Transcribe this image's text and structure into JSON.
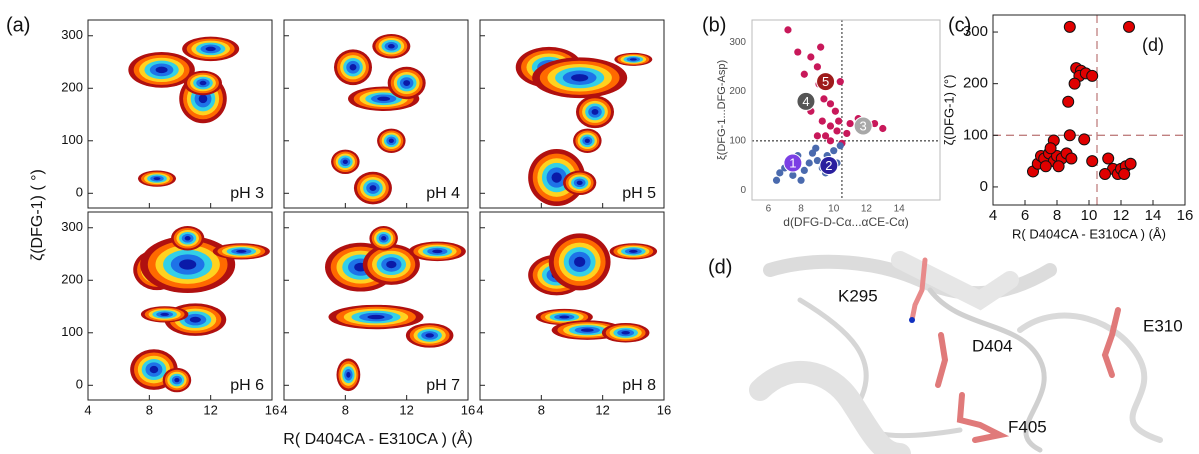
{
  "panel_labels": [
    "(a)",
    "(b)",
    "(c)",
    "(d)"
  ],
  "chart_data": [
    {
      "type": "density",
      "xlabel": "R( D404CA - E310CA ) (Å)",
      "ylabel": "ζ(DFG-1) ( °)",
      "xlim": [
        4,
        16
      ],
      "xticks": [
        4,
        8,
        12,
        16
      ],
      "ylim": [
        -28,
        330
      ],
      "yticks": [
        0,
        100,
        200,
        300
      ],
      "panels": [
        {
          "label": "pH 3",
          "clusters": [
            {
              "x": 8.8,
              "y": 235,
              "sx": 1.4,
              "sy": 22
            },
            {
              "x": 11.5,
              "y": 180,
              "sx": 1.0,
              "sy": 30
            },
            {
              "x": 12,
              "y": 275,
              "sx": 1.2,
              "sy": 15
            },
            {
              "x": 8.5,
              "y": 28,
              "sx": 0.8,
              "sy": 10
            },
            {
              "x": 11.5,
              "y": 210,
              "sx": 0.8,
              "sy": 15
            }
          ]
        },
        {
          "label": "pH 4",
          "clusters": [
            {
              "x": 8.5,
              "y": 240,
              "sx": 0.8,
              "sy": 22
            },
            {
              "x": 10.5,
              "y": 180,
              "sx": 1.5,
              "sy": 15
            },
            {
              "x": 12,
              "y": 210,
              "sx": 0.8,
              "sy": 20
            },
            {
              "x": 11,
              "y": 100,
              "sx": 0.6,
              "sy": 15
            },
            {
              "x": 9.8,
              "y": 10,
              "sx": 0.8,
              "sy": 20
            },
            {
              "x": 11,
              "y": 280,
              "sx": 0.8,
              "sy": 15
            },
            {
              "x": 8,
              "y": 60,
              "sx": 0.6,
              "sy": 15
            }
          ]
        },
        {
          "label": "pH 5",
          "clusters": [
            {
              "x": 8.5,
              "y": 240,
              "sx": 1.4,
              "sy": 25
            },
            {
              "x": 10.5,
              "y": 220,
              "sx": 2.0,
              "sy": 25
            },
            {
              "x": 11.5,
              "y": 155,
              "sx": 0.8,
              "sy": 20
            },
            {
              "x": 11,
              "y": 100,
              "sx": 0.6,
              "sy": 15
            },
            {
              "x": 9,
              "y": 30,
              "sx": 1.2,
              "sy": 35
            },
            {
              "x": 10.5,
              "y": 20,
              "sx": 0.7,
              "sy": 15
            },
            {
              "x": 14,
              "y": 255,
              "sx": 0.8,
              "sy": 8
            }
          ]
        },
        {
          "label": "pH 6",
          "clusters": [
            {
              "x": 8.5,
              "y": 220,
              "sx": 1,
              "sy": 25
            },
            {
              "x": 10.5,
              "y": 230,
              "sx": 2,
              "sy": 35
            },
            {
              "x": 14,
              "y": 255,
              "sx": 1.2,
              "sy": 10
            },
            {
              "x": 11,
              "y": 125,
              "sx": 1.3,
              "sy": 20
            },
            {
              "x": 9,
              "y": 135,
              "sx": 1,
              "sy": 10
            },
            {
              "x": 8.3,
              "y": 30,
              "sx": 1,
              "sy": 25
            },
            {
              "x": 9.8,
              "y": 10,
              "sx": 0.6,
              "sy": 15
            },
            {
              "x": 10.5,
              "y": 280,
              "sx": 0.7,
              "sy": 15
            }
          ]
        },
        {
          "label": "pH 7",
          "clusters": [
            {
              "x": 9,
              "y": 225,
              "sx": 1.5,
              "sy": 30
            },
            {
              "x": 11,
              "y": 230,
              "sx": 1.2,
              "sy": 25
            },
            {
              "x": 14,
              "y": 255,
              "sx": 1.2,
              "sy": 12
            },
            {
              "x": 10,
              "y": 130,
              "sx": 2,
              "sy": 15
            },
            {
              "x": 13.5,
              "y": 95,
              "sx": 1,
              "sy": 15
            },
            {
              "x": 10.5,
              "y": 280,
              "sx": 0.6,
              "sy": 15
            },
            {
              "x": 8.2,
              "y": 20,
              "sx": 0.5,
              "sy": 20
            }
          ]
        },
        {
          "label": "pH 8",
          "clusters": [
            {
              "x": 9,
              "y": 210,
              "sx": 1.2,
              "sy": 25
            },
            {
              "x": 10.5,
              "y": 235,
              "sx": 1.3,
              "sy": 35
            },
            {
              "x": 14,
              "y": 255,
              "sx": 1,
              "sy": 10
            },
            {
              "x": 9.5,
              "y": 130,
              "sx": 1.2,
              "sy": 10
            },
            {
              "x": 11,
              "y": 105,
              "sx": 1.5,
              "sy": 12
            },
            {
              "x": 13.5,
              "y": 100,
              "sx": 1,
              "sy": 12
            }
          ]
        }
      ]
    },
    {
      "type": "scatter",
      "xlabel": "d(DFG-D-Cα...αCE-Cα)",
      "ylabel": "ξ(DFG-1...DFG-Asp)",
      "xlim": [
        5,
        16.5
      ],
      "xticks": [
        6,
        8,
        10,
        12,
        14
      ],
      "ylim": [
        -20,
        345
      ],
      "yticks": [
        0,
        100,
        200,
        300
      ],
      "ref_x": 10.5,
      "ref_y": 100,
      "series": [
        {
          "color": "#c8185a",
          "x": [
            7.2,
            7.8,
            8.6,
            9.2,
            9.0,
            8.2,
            9.1,
            10.4,
            9.4,
            8.6,
            9.8,
            10.1,
            9.3,
            9.8,
            10.2,
            9.5,
            9.8,
            10.5,
            11.0,
            11.5,
            12.0,
            12.5,
            13.0,
            10.8,
            9.0,
            10.3
          ],
          "y": [
            325,
            280,
            270,
            290,
            250,
            235,
            215,
            220,
            185,
            160,
            175,
            160,
            140,
            130,
            120,
            110,
            100,
            95,
            135,
            145,
            125,
            135,
            125,
            115,
            110,
            140
          ]
        },
        {
          "color": "#4a6aae",
          "x": [
            6.5,
            6.7,
            7.0,
            7.3,
            7.8,
            8.2,
            8.5,
            8.7,
            9.0,
            9.3,
            9.6,
            10.0,
            10.2,
            7.5,
            8.0,
            8.9,
            9.5,
            10.4
          ],
          "y": [
            20,
            35,
            45,
            60,
            70,
            40,
            55,
            75,
            60,
            45,
            70,
            80,
            55,
            30,
            20,
            85,
            35,
            90
          ]
        }
      ],
      "states": [
        {
          "label": "1",
          "x": 7.5,
          "y": 55,
          "color": "#7b3fe4"
        },
        {
          "label": "2",
          "x": 9.7,
          "y": 50,
          "color": "#2a1f9e"
        },
        {
          "label": "3",
          "x": 11.8,
          "y": 130,
          "color": "#a8a8a8"
        },
        {
          "label": "4",
          "x": 8.3,
          "y": 180,
          "color": "#555555"
        },
        {
          "label": "5",
          "x": 9.5,
          "y": 220,
          "color": "#9e1b1b"
        }
      ]
    },
    {
      "type": "scatter",
      "xlabel": "R( D404CA - E310CA ) (Å)",
      "ylabel": "ζ(DFG-1)  (°)",
      "annotation": "(d)",
      "xlim": [
        4,
        16
      ],
      "xticks": [
        4,
        6,
        8,
        10,
        12,
        14,
        16
      ],
      "ylim": [
        -35,
        333
      ],
      "yticks": [
        0,
        100,
        200,
        300
      ],
      "ref_x": 10.5,
      "ref_y": 100,
      "series": [
        {
          "color": "#e00000",
          "x": [
            8.8,
            12.5,
            8.7,
            9.2,
            9.5,
            9.4,
            9.8,
            10.2,
            9.1,
            9.7,
            8.8,
            10.2,
            7.8,
            6.5,
            6.8,
            7.0,
            7.2,
            7.5,
            7.8,
            8.0,
            8.3,
            8.6,
            8.9,
            7.3,
            7.6,
            8.1,
            11.2,
            11.5,
            11.8,
            12.0,
            12.3,
            12.6,
            11.0,
            12.2
          ],
          "y": [
            310,
            310,
            165,
            230,
            225,
            215,
            220,
            215,
            200,
            92,
            100,
            50,
            90,
            30,
            45,
            60,
            55,
            65,
            50,
            60,
            55,
            65,
            55,
            40,
            75,
            40,
            55,
            35,
            25,
            35,
            40,
            45,
            25,
            25
          ]
        }
      ]
    }
  ],
  "structure_labels": [
    "K295",
    "D404",
    "E310",
    "F405"
  ]
}
